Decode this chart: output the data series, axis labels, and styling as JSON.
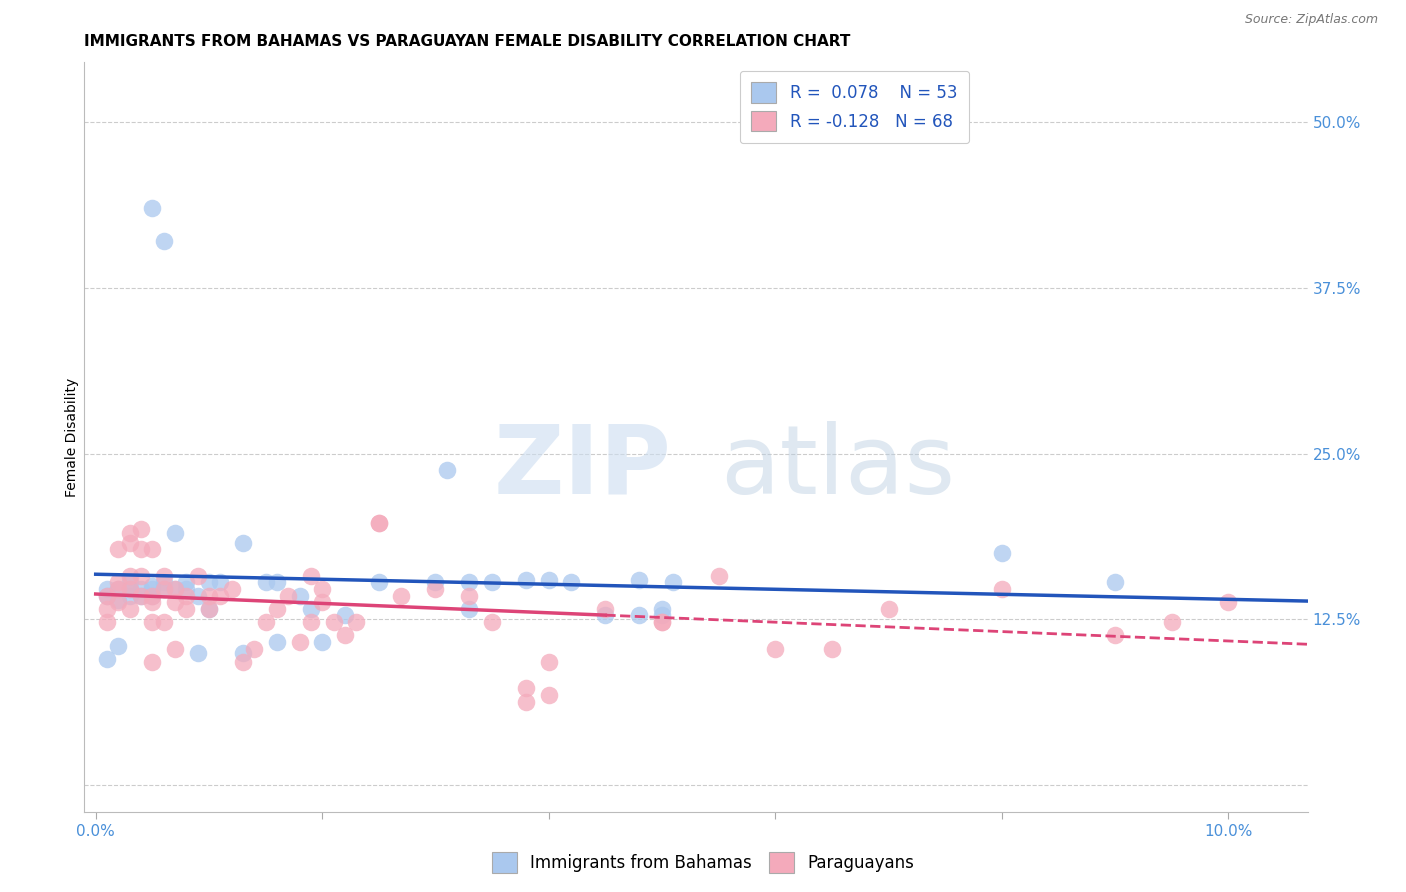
{
  "title": "IMMIGRANTS FROM BAHAMAS VS PARAGUAYAN FEMALE DISABILITY CORRELATION CHART",
  "source": "Source: ZipAtlas.com",
  "ylabel": "Female Disability",
  "x_ticks": [
    0.0,
    0.02,
    0.04,
    0.06,
    0.08,
    0.1
  ],
  "x_tick_labels": [
    "0.0%",
    "",
    "",
    "",
    "",
    "10.0%"
  ],
  "y_ticks": [
    0.0,
    0.125,
    0.25,
    0.375,
    0.5
  ],
  "y_tick_labels": [
    "",
    "12.5%",
    "25.0%",
    "37.5%",
    "50.0%"
  ],
  "xlim": [
    -0.001,
    0.107
  ],
  "ylim": [
    -0.02,
    0.545
  ],
  "blue_R": 0.078,
  "blue_N": 53,
  "pink_R": -0.128,
  "pink_N": 68,
  "blue_color": "#aac8ee",
  "pink_color": "#f4aabb",
  "blue_line_color": "#2255bb",
  "pink_line_color": "#dd4477",
  "blue_scatter": [
    [
      0.001,
      0.148
    ],
    [
      0.001,
      0.143
    ],
    [
      0.002,
      0.14
    ],
    [
      0.002,
      0.148
    ],
    [
      0.003,
      0.143
    ],
    [
      0.003,
      0.148
    ],
    [
      0.003,
      0.153
    ],
    [
      0.004,
      0.148
    ],
    [
      0.004,
      0.143
    ],
    [
      0.005,
      0.15
    ],
    [
      0.005,
      0.143
    ],
    [
      0.005,
      0.148
    ],
    [
      0.006,
      0.148
    ],
    [
      0.006,
      0.153
    ],
    [
      0.007,
      0.148
    ],
    [
      0.007,
      0.19
    ],
    [
      0.008,
      0.153
    ],
    [
      0.008,
      0.148
    ],
    [
      0.009,
      0.143
    ],
    [
      0.009,
      0.1
    ],
    [
      0.01,
      0.133
    ],
    [
      0.01,
      0.153
    ],
    [
      0.011,
      0.153
    ],
    [
      0.013,
      0.183
    ],
    [
      0.013,
      0.1
    ],
    [
      0.015,
      0.153
    ],
    [
      0.016,
      0.153
    ],
    [
      0.016,
      0.108
    ],
    [
      0.018,
      0.143
    ],
    [
      0.019,
      0.133
    ],
    [
      0.02,
      0.108
    ],
    [
      0.022,
      0.128
    ],
    [
      0.025,
      0.153
    ],
    [
      0.03,
      0.153
    ],
    [
      0.031,
      0.238
    ],
    [
      0.033,
      0.133
    ],
    [
      0.033,
      0.153
    ],
    [
      0.035,
      0.153
    ],
    [
      0.038,
      0.155
    ],
    [
      0.04,
      0.155
    ],
    [
      0.042,
      0.153
    ],
    [
      0.045,
      0.128
    ],
    [
      0.048,
      0.155
    ],
    [
      0.048,
      0.128
    ],
    [
      0.05,
      0.133
    ],
    [
      0.05,
      0.128
    ],
    [
      0.051,
      0.153
    ],
    [
      0.08,
      0.175
    ],
    [
      0.09,
      0.153
    ],
    [
      0.005,
      0.435
    ],
    [
      0.006,
      0.41
    ],
    [
      0.001,
      0.095
    ],
    [
      0.002,
      0.105
    ]
  ],
  "pink_scatter": [
    [
      0.001,
      0.143
    ],
    [
      0.001,
      0.133
    ],
    [
      0.001,
      0.123
    ],
    [
      0.002,
      0.148
    ],
    [
      0.002,
      0.138
    ],
    [
      0.002,
      0.153
    ],
    [
      0.002,
      0.178
    ],
    [
      0.003,
      0.133
    ],
    [
      0.003,
      0.148
    ],
    [
      0.003,
      0.158
    ],
    [
      0.003,
      0.183
    ],
    [
      0.003,
      0.19
    ],
    [
      0.004,
      0.143
    ],
    [
      0.004,
      0.158
    ],
    [
      0.004,
      0.178
    ],
    [
      0.004,
      0.193
    ],
    [
      0.005,
      0.138
    ],
    [
      0.005,
      0.143
    ],
    [
      0.005,
      0.123
    ],
    [
      0.005,
      0.093
    ],
    [
      0.005,
      0.178
    ],
    [
      0.006,
      0.123
    ],
    [
      0.006,
      0.148
    ],
    [
      0.006,
      0.158
    ],
    [
      0.007,
      0.138
    ],
    [
      0.007,
      0.148
    ],
    [
      0.007,
      0.103
    ],
    [
      0.008,
      0.143
    ],
    [
      0.008,
      0.133
    ],
    [
      0.009,
      0.158
    ],
    [
      0.01,
      0.133
    ],
    [
      0.01,
      0.143
    ],
    [
      0.011,
      0.143
    ],
    [
      0.012,
      0.148
    ],
    [
      0.013,
      0.093
    ],
    [
      0.014,
      0.103
    ],
    [
      0.015,
      0.123
    ],
    [
      0.016,
      0.133
    ],
    [
      0.017,
      0.143
    ],
    [
      0.018,
      0.108
    ],
    [
      0.019,
      0.158
    ],
    [
      0.019,
      0.123
    ],
    [
      0.02,
      0.148
    ],
    [
      0.02,
      0.138
    ],
    [
      0.021,
      0.123
    ],
    [
      0.022,
      0.113
    ],
    [
      0.023,
      0.123
    ],
    [
      0.025,
      0.198
    ],
    [
      0.025,
      0.198
    ],
    [
      0.027,
      0.143
    ],
    [
      0.03,
      0.148
    ],
    [
      0.033,
      0.143
    ],
    [
      0.035,
      0.123
    ],
    [
      0.038,
      0.073
    ],
    [
      0.038,
      0.063
    ],
    [
      0.04,
      0.093
    ],
    [
      0.04,
      0.068
    ],
    [
      0.045,
      0.133
    ],
    [
      0.05,
      0.123
    ],
    [
      0.05,
      0.123
    ],
    [
      0.055,
      0.158
    ],
    [
      0.06,
      0.103
    ],
    [
      0.065,
      0.103
    ],
    [
      0.07,
      0.133
    ],
    [
      0.08,
      0.148
    ],
    [
      0.09,
      0.113
    ],
    [
      0.095,
      0.123
    ],
    [
      0.1,
      0.138
    ]
  ],
  "watermark_zip": "ZIP",
  "watermark_atlas": "atlas",
  "background_color": "#ffffff",
  "grid_color": "#cccccc",
  "tick_label_color": "#4a90d9",
  "title_fontsize": 11,
  "axis_label_fontsize": 10,
  "tick_fontsize": 11,
  "legend_fontsize": 12
}
